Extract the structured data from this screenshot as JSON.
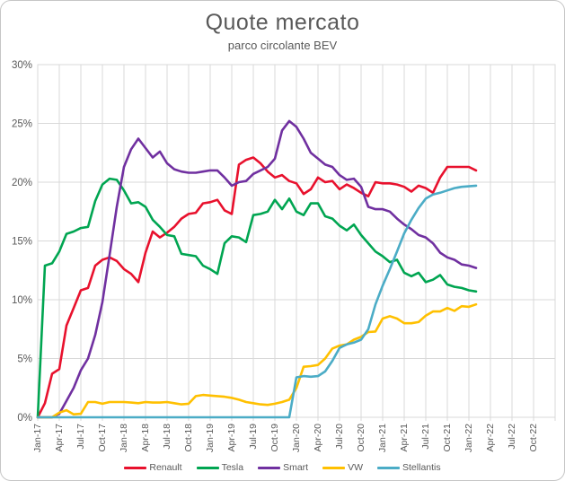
{
  "chart_data": {
    "type": "line",
    "title": "Quote mercato",
    "subtitle": "parco circolante BEV",
    "ylabel": "",
    "xlabel": "",
    "ylim": [
      0,
      30
    ],
    "ytick_step": 5,
    "ytick_labels": [
      "0%",
      "5%",
      "10%",
      "15%",
      "20%",
      "25%",
      "30%"
    ],
    "grid": true,
    "legend_position": "bottom",
    "x_axis_tick_labels": [
      "Jan-17",
      "Apr-17",
      "Jul-17",
      "Oct-17",
      "Jan-18",
      "Apr-18",
      "Jul-18",
      "Oct-18",
      "Jan-19",
      "Apr-19",
      "Jul-19",
      "Oct-19",
      "Jan-20",
      "Apr-20",
      "Jul-20",
      "Oct-20",
      "Jan-21",
      "Apr-21",
      "Jul-21",
      "Oct-21",
      "Jan-22",
      "Apr-22",
      "Jul-22",
      "Oct-22"
    ],
    "x": [
      "Jan-17",
      "Feb-17",
      "Mar-17",
      "Apr-17",
      "May-17",
      "Jun-17",
      "Jul-17",
      "Aug-17",
      "Sep-17",
      "Oct-17",
      "Nov-17",
      "Dec-17",
      "Jan-18",
      "Feb-18",
      "Mar-18",
      "Apr-18",
      "May-18",
      "Jun-18",
      "Jul-18",
      "Aug-18",
      "Sep-18",
      "Oct-18",
      "Nov-18",
      "Dec-18",
      "Jan-19",
      "Feb-19",
      "Mar-19",
      "Apr-19",
      "May-19",
      "Jun-19",
      "Jul-19",
      "Aug-19",
      "Sep-19",
      "Oct-19",
      "Nov-19",
      "Dec-19",
      "Jan-20",
      "Feb-20",
      "Mar-20",
      "Apr-20",
      "May-20",
      "Jun-20",
      "Jul-20",
      "Aug-20",
      "Sep-20",
      "Oct-20",
      "Nov-20",
      "Dec-20",
      "Jan-21",
      "Feb-21",
      "Mar-21",
      "Apr-21",
      "May-21",
      "Jun-21",
      "Jul-21",
      "Aug-21",
      "Sep-21",
      "Oct-21",
      "Nov-21",
      "Dec-21",
      "Jan-22",
      "Feb-22"
    ],
    "unit": "%",
    "series": [
      {
        "name": "Renault",
        "color": "#e8112d",
        "values": [
          0,
          1.2,
          3.7,
          4.1,
          7.8,
          9.3,
          10.8,
          11.0,
          12.9,
          13.4,
          13.6,
          13.3,
          12.6,
          12.2,
          11.5,
          14.0,
          15.8,
          15.3,
          15.7,
          16.2,
          16.9,
          17.3,
          17.4,
          18.2,
          18.3,
          18.5,
          17.6,
          17.3,
          21.5,
          21.9,
          22.1,
          21.6,
          20.9,
          20.4,
          20.6,
          20.1,
          19.9,
          19.0,
          19.4,
          20.4,
          20.0,
          20.1,
          19.4,
          19.8,
          19.5,
          19.1,
          18.8,
          20.0,
          19.9,
          19.9,
          19.8,
          19.6,
          19.2,
          19.7,
          19.5,
          19.1,
          20.4,
          21.3,
          21.3,
          21.3,
          21.3,
          21.0
        ]
      },
      {
        "name": "Tesla",
        "color": "#00a551",
        "values": [
          0,
          12.9,
          13.1,
          14.1,
          15.6,
          15.8,
          16.1,
          16.2,
          18.4,
          19.8,
          20.3,
          20.2,
          19.3,
          18.2,
          18.3,
          17.9,
          16.8,
          16.2,
          15.5,
          15.4,
          13.9,
          13.8,
          13.7,
          12.9,
          12.6,
          12.2,
          14.8,
          15.4,
          15.3,
          14.9,
          17.2,
          17.3,
          17.5,
          18.5,
          17.7,
          18.6,
          17.5,
          17.2,
          18.2,
          18.2,
          17.1,
          16.9,
          16.3,
          15.9,
          16.4,
          15.5,
          14.8,
          14.1,
          13.7,
          13.2,
          13.4,
          12.3,
          12.0,
          12.3,
          11.5,
          11.7,
          12.1,
          11.3,
          11.1,
          11.0,
          10.8,
          10.7
        ]
      },
      {
        "name": "Smart",
        "color": "#7030a0",
        "values": [
          0,
          0,
          0,
          0.3,
          1.4,
          2.5,
          4.0,
          5.0,
          7.0,
          9.8,
          13.8,
          17.9,
          21.3,
          22.8,
          23.7,
          22.9,
          22.1,
          22.6,
          21.6,
          21.1,
          20.9,
          20.8,
          20.8,
          20.9,
          21.0,
          21.0,
          20.4,
          19.7,
          20.0,
          20.1,
          20.7,
          21.0,
          21.3,
          22.0,
          24.4,
          25.2,
          24.7,
          23.7,
          22.5,
          22.0,
          21.5,
          21.3,
          20.6,
          20.2,
          20.3,
          19.6,
          17.9,
          17.7,
          17.7,
          17.5,
          16.9,
          16.4,
          16.0,
          15.5,
          15.3,
          14.8,
          14.0,
          13.6,
          13.4,
          13.0,
          12.9,
          12.7
        ]
      },
      {
        "name": "VW",
        "color": "#ffc000",
        "values": [
          0,
          0,
          0,
          0.4,
          0.6,
          0.25,
          0.3,
          1.3,
          1.3,
          1.15,
          1.3,
          1.3,
          1.3,
          1.25,
          1.2,
          1.3,
          1.25,
          1.25,
          1.3,
          1.2,
          1.1,
          1.15,
          1.8,
          1.9,
          1.85,
          1.8,
          1.75,
          1.65,
          1.5,
          1.3,
          1.2,
          1.1,
          1.05,
          1.15,
          1.3,
          1.5,
          2.5,
          4.3,
          4.35,
          4.45,
          5.0,
          5.85,
          6.1,
          6.2,
          6.6,
          6.85,
          7.25,
          7.3,
          8.4,
          8.6,
          8.4,
          8.0,
          8.0,
          8.1,
          8.65,
          9.0,
          9.0,
          9.3,
          9.05,
          9.45,
          9.4,
          9.6
        ]
      },
      {
        "name": "Stellantis",
        "color": "#4bacc6",
        "values": [
          0,
          0,
          0,
          0,
          0,
          0,
          0,
          0,
          0,
          0,
          0,
          0,
          0,
          0,
          0,
          0,
          0,
          0,
          0,
          0,
          0,
          0,
          0,
          0,
          0,
          0,
          0,
          0,
          0,
          0,
          0,
          0,
          0,
          0,
          0,
          0,
          3.4,
          3.5,
          3.45,
          3.5,
          3.9,
          4.8,
          5.9,
          6.2,
          6.35,
          6.6,
          7.5,
          9.6,
          11.2,
          12.6,
          14.1,
          15.65,
          16.8,
          17.8,
          18.6,
          18.95,
          19.1,
          19.3,
          19.5,
          19.6,
          19.65,
          19.7
        ]
      }
    ],
    "colors": {
      "text": "#595959",
      "gridline": "#d9d9d9",
      "plot_border": "#d9d9d9"
    }
  }
}
